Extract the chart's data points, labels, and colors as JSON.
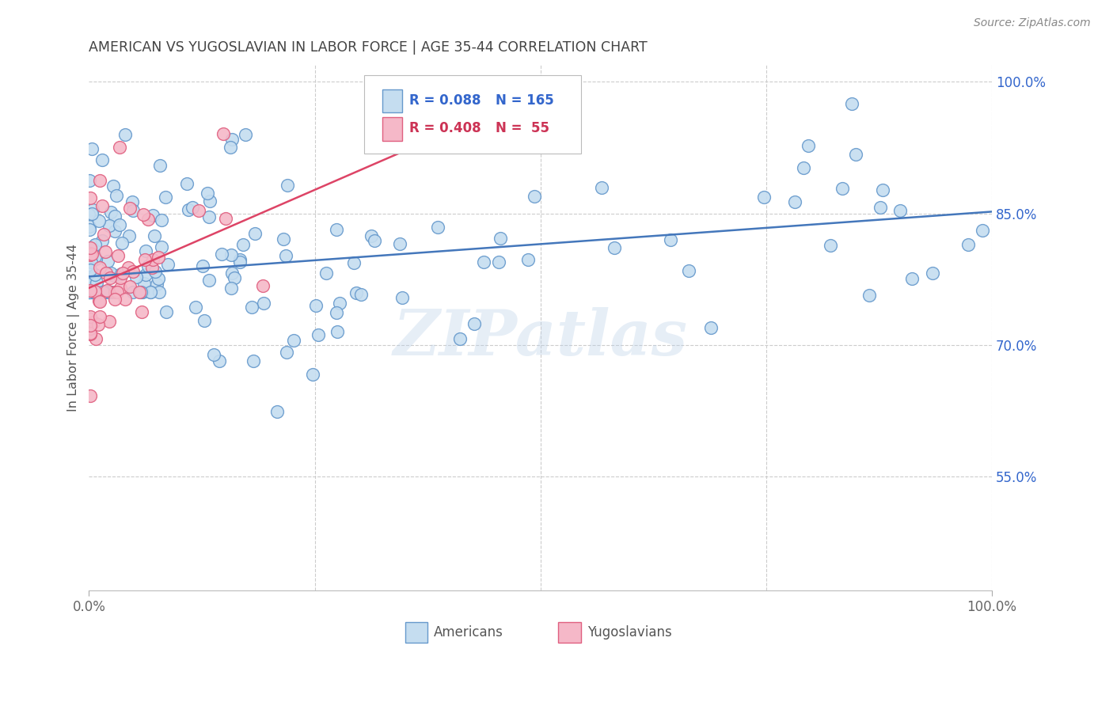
{
  "title": "AMERICAN VS YUGOSLAVIAN IN LABOR FORCE | AGE 35-44 CORRELATION CHART",
  "source": "Source: ZipAtlas.com",
  "ylabel": "In Labor Force | Age 35-44",
  "watermark": "ZIPatlas",
  "blue_face_color": "#c5ddf0",
  "blue_edge_color": "#6699cc",
  "pink_face_color": "#f5b8c8",
  "pink_edge_color": "#e06080",
  "blue_line_color": "#4477bb",
  "pink_line_color": "#dd4466",
  "blue_text_color": "#3366cc",
  "pink_text_color": "#cc3355",
  "background_color": "#ffffff",
  "grid_color": "#cccccc",
  "title_color": "#444444",
  "legend_blue_R": "R = 0.088",
  "legend_blue_N": "N = 165",
  "legend_pink_R": "R = 0.408",
  "legend_pink_N": "N =  55",
  "legend_label_blue": "Americans",
  "legend_label_pink": "Yugoslavians",
  "blue_line_x0": 0.0,
  "blue_line_x1": 1.0,
  "blue_line_y0": 0.778,
  "blue_line_y1": 0.852,
  "pink_line_x0": 0.0,
  "pink_line_x1": 0.38,
  "pink_line_y0": 0.765,
  "pink_line_y1": 0.935,
  "xmin": 0.0,
  "xmax": 1.0,
  "ymin": 0.42,
  "ymax": 1.02,
  "yticks": [
    0.55,
    0.7,
    0.85,
    1.0
  ],
  "ytick_labels": [
    "55.0%",
    "70.0%",
    "85.0%",
    "100.0%"
  ]
}
